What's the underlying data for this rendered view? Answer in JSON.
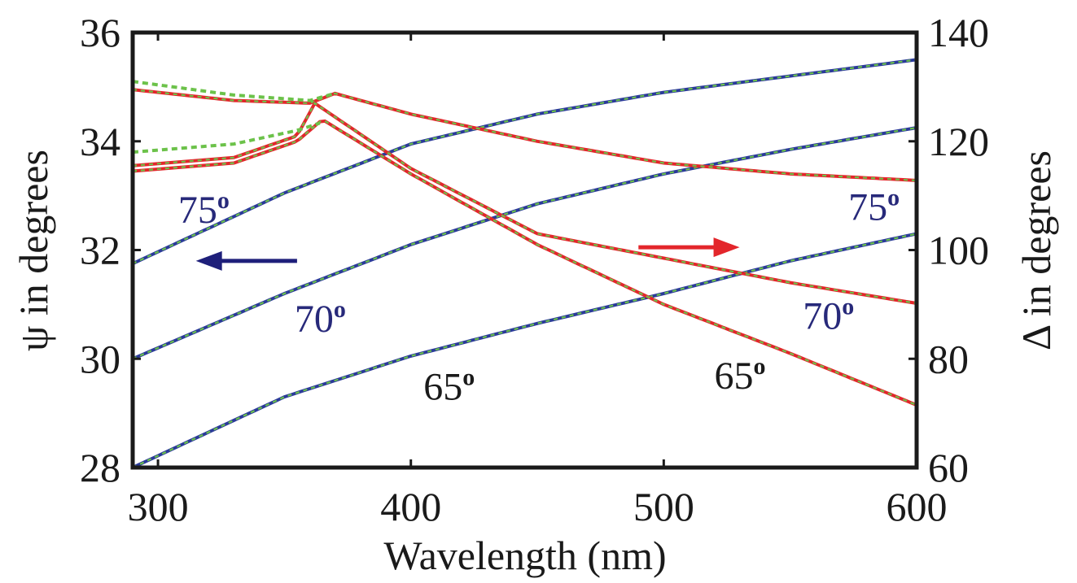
{
  "chart_data": {
    "type": "line",
    "title": "",
    "xlabel": "Wavelength (nm)",
    "ylabel_left": "ψ  in degrees",
    "ylabel_right": "Δ in degrees",
    "xlim": [
      290,
      600
    ],
    "ylim_left": [
      28,
      36
    ],
    "ylim_right": [
      60,
      140
    ],
    "x_ticks": [
      "300",
      "400",
      "500",
      "600"
    ],
    "y_left_ticks": [
      "28",
      "30",
      "32",
      "34",
      "36"
    ],
    "y_right_ticks": [
      "60",
      "80",
      "100",
      "120",
      "140"
    ],
    "grid": false,
    "colors": {
      "psi": "#2b3a9a",
      "delta": "#e3262b",
      "fit": "#6cc24a",
      "axis": "#1a1a1a",
      "arrow_left": "#1e1f7a",
      "arrow_right": "#e3262b",
      "angle_label_blue": "#27297a",
      "angle_label_dark": "#1a1a1a"
    },
    "series": [
      {
        "kind": "psi",
        "axis": "left",
        "angle": "75",
        "x": [
          290,
          350,
          400,
          450,
          500,
          550,
          600
        ],
        "values": [
          31.75,
          33.05,
          33.95,
          34.5,
          34.9,
          35.2,
          35.5
        ]
      },
      {
        "kind": "psi",
        "axis": "left",
        "angle": "70",
        "x": [
          290,
          350,
          400,
          450,
          500,
          550,
          600
        ],
        "values": [
          30.0,
          31.2,
          32.1,
          32.85,
          33.4,
          33.85,
          34.25
        ]
      },
      {
        "kind": "psi",
        "axis": "left",
        "angle": "65",
        "x": [
          290,
          350,
          400,
          450,
          500,
          550,
          600
        ],
        "values": [
          28.0,
          29.3,
          30.05,
          30.65,
          31.2,
          31.8,
          32.3
        ]
      },
      {
        "kind": "delta",
        "axis": "right",
        "angle": "75",
        "x": [
          290,
          330,
          360,
          370,
          400,
          450,
          500,
          550,
          600
        ],
        "values": [
          129.5,
          127.5,
          127,
          128.8,
          125,
          120,
          116,
          114,
          112.8
        ]
      },
      {
        "kind": "delta",
        "axis": "right",
        "angle": "70",
        "x": [
          290,
          330,
          355,
          362,
          400,
          450,
          500,
          550,
          600
        ],
        "values": [
          115.5,
          117,
          121,
          127,
          115,
          103,
          98.5,
          94,
          90.2
        ]
      },
      {
        "kind": "delta",
        "axis": "right",
        "angle": "65",
        "x": [
          290,
          330,
          355,
          365,
          400,
          450,
          500,
          550,
          600
        ],
        "values": [
          114.5,
          116,
          120,
          124,
          114,
          101,
          90,
          81,
          71.5
        ]
      }
    ],
    "fit_offsets_right": [
      {
        "angle": "75",
        "x": [
          290,
          330,
          360,
          370
        ],
        "values": [
          131,
          128.5,
          127.5,
          128.8
        ]
      },
      {
        "angle": "70",
        "x": [
          290,
          330,
          355,
          365
        ],
        "values": [
          118,
          119.5,
          122,
          123.5
        ]
      }
    ],
    "annotations": {
      "psi_labels": [
        {
          "text": "75",
          "sup": "o",
          "x": 308,
          "y_left": 32.5,
          "color": "blue"
        },
        {
          "text": "70",
          "sup": "o",
          "x": 354,
          "y_left": 30.5,
          "color": "blue"
        },
        {
          "text": "65",
          "sup": "o",
          "x": 405,
          "y_left": 29.25,
          "color": "dark"
        }
      ],
      "delta_labels": [
        {
          "text": "75",
          "sup": "o",
          "x": 573,
          "y_right": 105.5,
          "color": "blue"
        },
        {
          "text": "70",
          "sup": "o",
          "x": 555,
          "y_right": 85.5,
          "color": "blue"
        },
        {
          "text": "65",
          "sup": "o",
          "x": 520,
          "y_right": 74.5,
          "color": "dark"
        }
      ],
      "arrow_left": {
        "from_x": 355,
        "to_x": 315,
        "y_left": 31.8,
        "direction": "left"
      },
      "arrow_right": {
        "from_x": 490,
        "to_x": 530,
        "y_right": 100.5,
        "direction": "right"
      }
    }
  }
}
